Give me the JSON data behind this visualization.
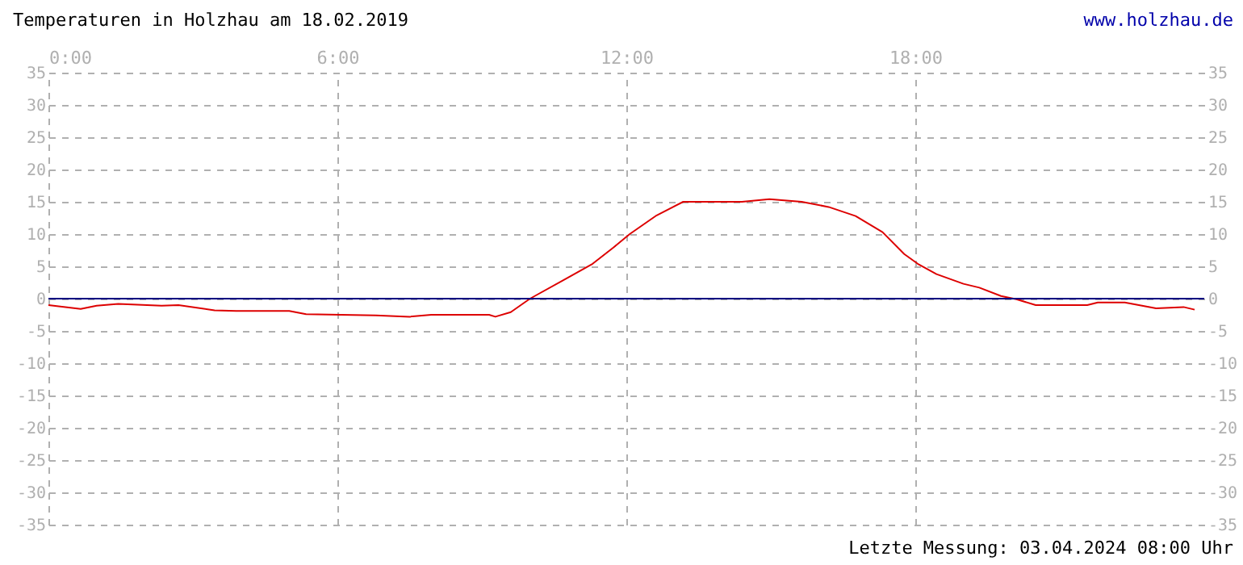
{
  "chart_data": {
    "type": "line",
    "title": "Temperaturen in Holzhau am 18.02.2019",
    "annotations": [
      "www.holzhau.de",
      "Letzte Messung: 03.04.2024 08:00 Uhr"
    ],
    "x": [
      0,
      0.67,
      1.0,
      1.45,
      2.35,
      2.7,
      3.45,
      3.9,
      5.0,
      5.35,
      6.8,
      7.5,
      7.95,
      9.15,
      9.28,
      9.6,
      10.0,
      10.7,
      11.3,
      11.73,
      12.07,
      12.63,
      13.18,
      14.4,
      14.97,
      15.64,
      16.2,
      16.76,
      17.32,
      17.77,
      18.05,
      18.44,
      19.0,
      19.33,
      19.78,
      20.1,
      20.5,
      21.57,
      21.79,
      22.35,
      23.0,
      23.57,
      23.8
    ],
    "series": [
      {
        "color": "#dd0000",
        "values": [
          -1.0,
          -1.6,
          -1.1,
          -0.8,
          -1.1,
          -1.0,
          -1.8,
          -1.9,
          -1.9,
          -2.4,
          -2.6,
          -2.8,
          -2.5,
          -2.5,
          -2.8,
          -2.1,
          0,
          2.9,
          5.4,
          7.9,
          10,
          12.9,
          15,
          15,
          15.4,
          15,
          14.2,
          12.8,
          10.3,
          6.9,
          5.4,
          3.8,
          2.3,
          1.7,
          0.4,
          -0.1,
          -1.0,
          -1.0,
          -0.6,
          -0.6,
          -1.5,
          -1.3,
          -1.7
        ]
      }
    ],
    "xlim": [
      0,
      24
    ],
    "xticks": [
      {
        "value": 0,
        "label": "0:00"
      },
      {
        "value": 6,
        "label": "6:00"
      },
      {
        "value": 12,
        "label": "12:00"
      },
      {
        "value": 18,
        "label": "18:00"
      }
    ],
    "ylim": [
      -35,
      35
    ],
    "yticks": [
      -35,
      -30,
      -25,
      -20,
      -15,
      -10,
      -5,
      0,
      5,
      10,
      15,
      20,
      25,
      30,
      35
    ],
    "y2lim": [
      -35,
      35
    ],
    "y2ticks": [
      -35,
      -30,
      -25,
      -20,
      -15,
      -10,
      -5,
      0,
      5,
      10,
      15,
      20,
      25,
      30,
      35
    ],
    "ref_lines": [
      {
        "axis": "y",
        "value": 0,
        "color": "#000080"
      }
    ],
    "grid": true,
    "marker": "none",
    "line_style": "solid"
  }
}
